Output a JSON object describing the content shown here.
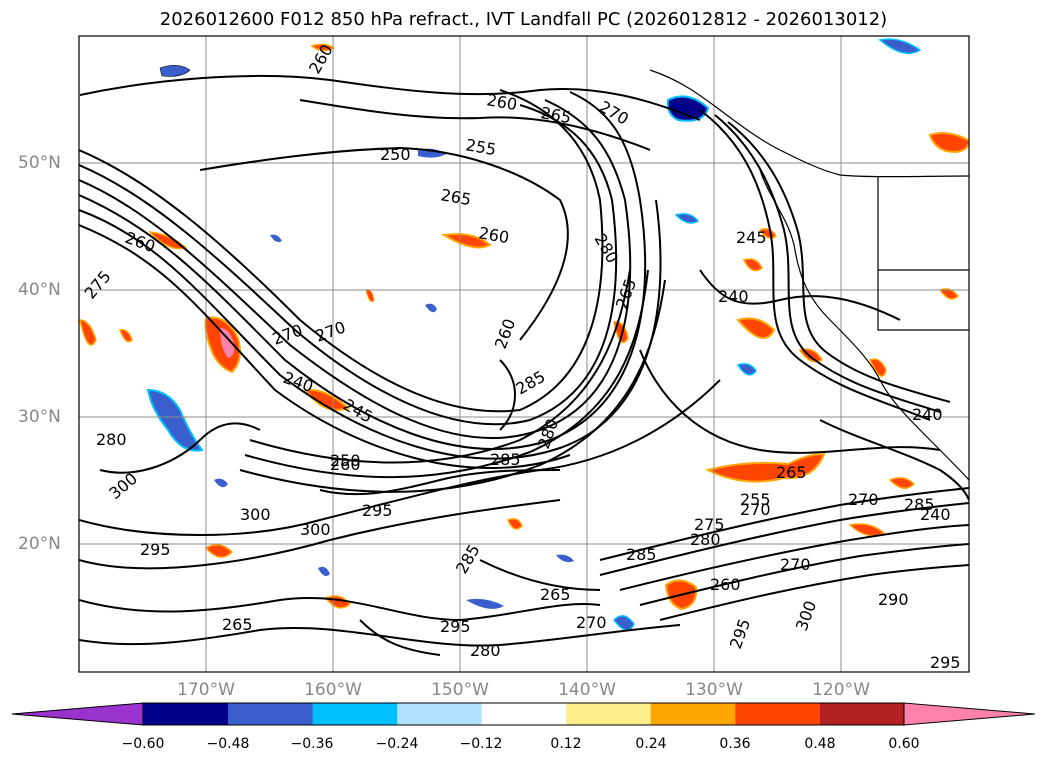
{
  "title": "2026012600 F012 850 hPa refract., IVT Landfall PC (2026012812 - 2026013012)",
  "lat_labels": [
    "50°N",
    "40°N",
    "30°N",
    "20°N"
  ],
  "lon_labels": [
    "170°W",
    "160°W",
    "150°W",
    "140°W",
    "130°W",
    "120°W"
  ],
  "colorbar": {
    "ticks": [
      "−0.60",
      "−0.48",
      "−0.36",
      "−0.24",
      "−0.12",
      "0.12",
      "0.24",
      "0.36",
      "0.48",
      "0.60"
    ],
    "colors": [
      "#9a32cd",
      "#00008b",
      "#3a5fcd",
      "#00bfff",
      "#b0e2ff",
      "#ffffff",
      "#ffec8b",
      "#ffa500",
      "#ff4500",
      "#b22222",
      "#ff82ab"
    ]
  },
  "contour_labels": [
    "260",
    "260",
    "265",
    "270",
    "270",
    "255",
    "265",
    "260",
    "250",
    "260",
    "275",
    "270",
    "240",
    "245",
    "280",
    "265",
    "260",
    "245",
    "240",
    "270",
    "285",
    "280",
    "285",
    "260",
    "265",
    "270",
    "240",
    "300",
    "295",
    "300",
    "295",
    "280",
    "275",
    "285",
    "280",
    "260",
    "270",
    "290",
    "285",
    "270",
    "265",
    "295",
    "300",
    "300",
    "295",
    "285",
    "265",
    "280",
    "295",
    "250",
    "255",
    "240"
  ],
  "colors": {
    "grid": "#8c8c8c",
    "contour": "#000000",
    "coast": "#000000"
  }
}
